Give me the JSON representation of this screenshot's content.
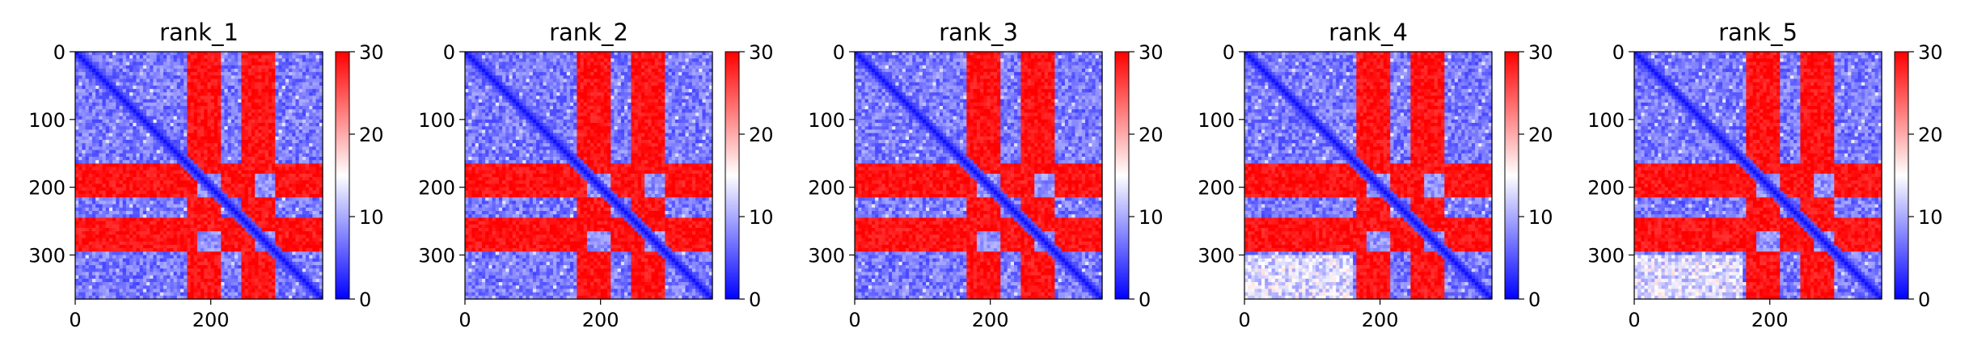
{
  "chart_data": [
    {
      "type": "heatmap",
      "title": "rank_1",
      "x_ticks": [
        "0",
        "200"
      ],
      "y_ticks": [
        "0",
        "100",
        "200",
        "300"
      ],
      "xlim": [
        0,
        365
      ],
      "ylim": [
        365,
        0
      ],
      "colorbar": {
        "colormap": "bwr",
        "range": [
          0,
          30
        ],
        "ticks": [
          "0",
          "10",
          "20",
          "30"
        ]
      },
      "blocks": {
        "red_row_bands": [
          [
            165,
            215
          ],
          [
            245,
            295
          ]
        ],
        "red_col_bands": [
          [
            165,
            180
          ],
          [
            245,
            265
          ]
        ],
        "diagonal": "low (blue)"
      }
    },
    {
      "type": "heatmap",
      "title": "rank_2",
      "x_ticks": [
        "0",
        "200"
      ],
      "y_ticks": [
        "0",
        "100",
        "200",
        "300"
      ],
      "xlim": [
        0,
        365
      ],
      "ylim": [
        365,
        0
      ],
      "colorbar": {
        "colormap": "bwr",
        "range": [
          0,
          30
        ],
        "ticks": [
          "0",
          "10",
          "20",
          "30"
        ]
      },
      "blocks": {
        "red_row_bands": [
          [
            165,
            215
          ],
          [
            245,
            295
          ]
        ],
        "red_col_bands": [
          [
            165,
            180
          ],
          [
            245,
            265
          ]
        ],
        "diagonal": "low (blue)"
      }
    },
    {
      "type": "heatmap",
      "title": "rank_3",
      "x_ticks": [
        "0",
        "200"
      ],
      "y_ticks": [
        "0",
        "100",
        "200",
        "300"
      ],
      "xlim": [
        0,
        365
      ],
      "ylim": [
        365,
        0
      ],
      "colorbar": {
        "colormap": "bwr",
        "range": [
          0,
          30
        ],
        "ticks": [
          "0",
          "10",
          "20",
          "30"
        ]
      },
      "blocks": {
        "red_row_bands": [
          [
            165,
            215
          ],
          [
            245,
            295
          ]
        ],
        "red_col_bands": [
          [
            165,
            180
          ],
          [
            245,
            265
          ]
        ],
        "diagonal": "low (blue)"
      }
    },
    {
      "type": "heatmap",
      "title": "rank_4",
      "x_ticks": [
        "0",
        "200"
      ],
      "y_ticks": [
        "0",
        "100",
        "200",
        "300"
      ],
      "xlim": [
        0,
        365
      ],
      "ylim": [
        365,
        0
      ],
      "colorbar": {
        "colormap": "bwr",
        "range": [
          0,
          30
        ],
        "ticks": [
          "0",
          "10",
          "20",
          "30"
        ]
      },
      "blocks": {
        "red_row_bands": [
          [
            165,
            215
          ],
          [
            245,
            295
          ]
        ],
        "red_col_bands": [
          [
            165,
            180
          ],
          [
            245,
            265
          ]
        ],
        "diagonal": "low (blue)"
      }
    },
    {
      "type": "heatmap",
      "title": "rank_5",
      "x_ticks": [
        "0",
        "200"
      ],
      "y_ticks": [
        "0",
        "100",
        "200",
        "300"
      ],
      "xlim": [
        0,
        365
      ],
      "ylim": [
        365,
        0
      ],
      "colorbar": {
        "colormap": "bwr",
        "range": [
          0,
          30
        ],
        "ticks": [
          "0",
          "10",
          "20",
          "30"
        ]
      },
      "blocks": {
        "red_row_bands": [
          [
            165,
            215
          ],
          [
            245,
            295
          ]
        ],
        "red_col_bands": [
          [
            165,
            180
          ],
          [
            245,
            265
          ]
        ],
        "diagonal": "low (blue)"
      }
    }
  ],
  "colors": {
    "low": "#0000ff",
    "mid": "#ffffff",
    "high": "#ff0000",
    "axis": "#000000"
  }
}
